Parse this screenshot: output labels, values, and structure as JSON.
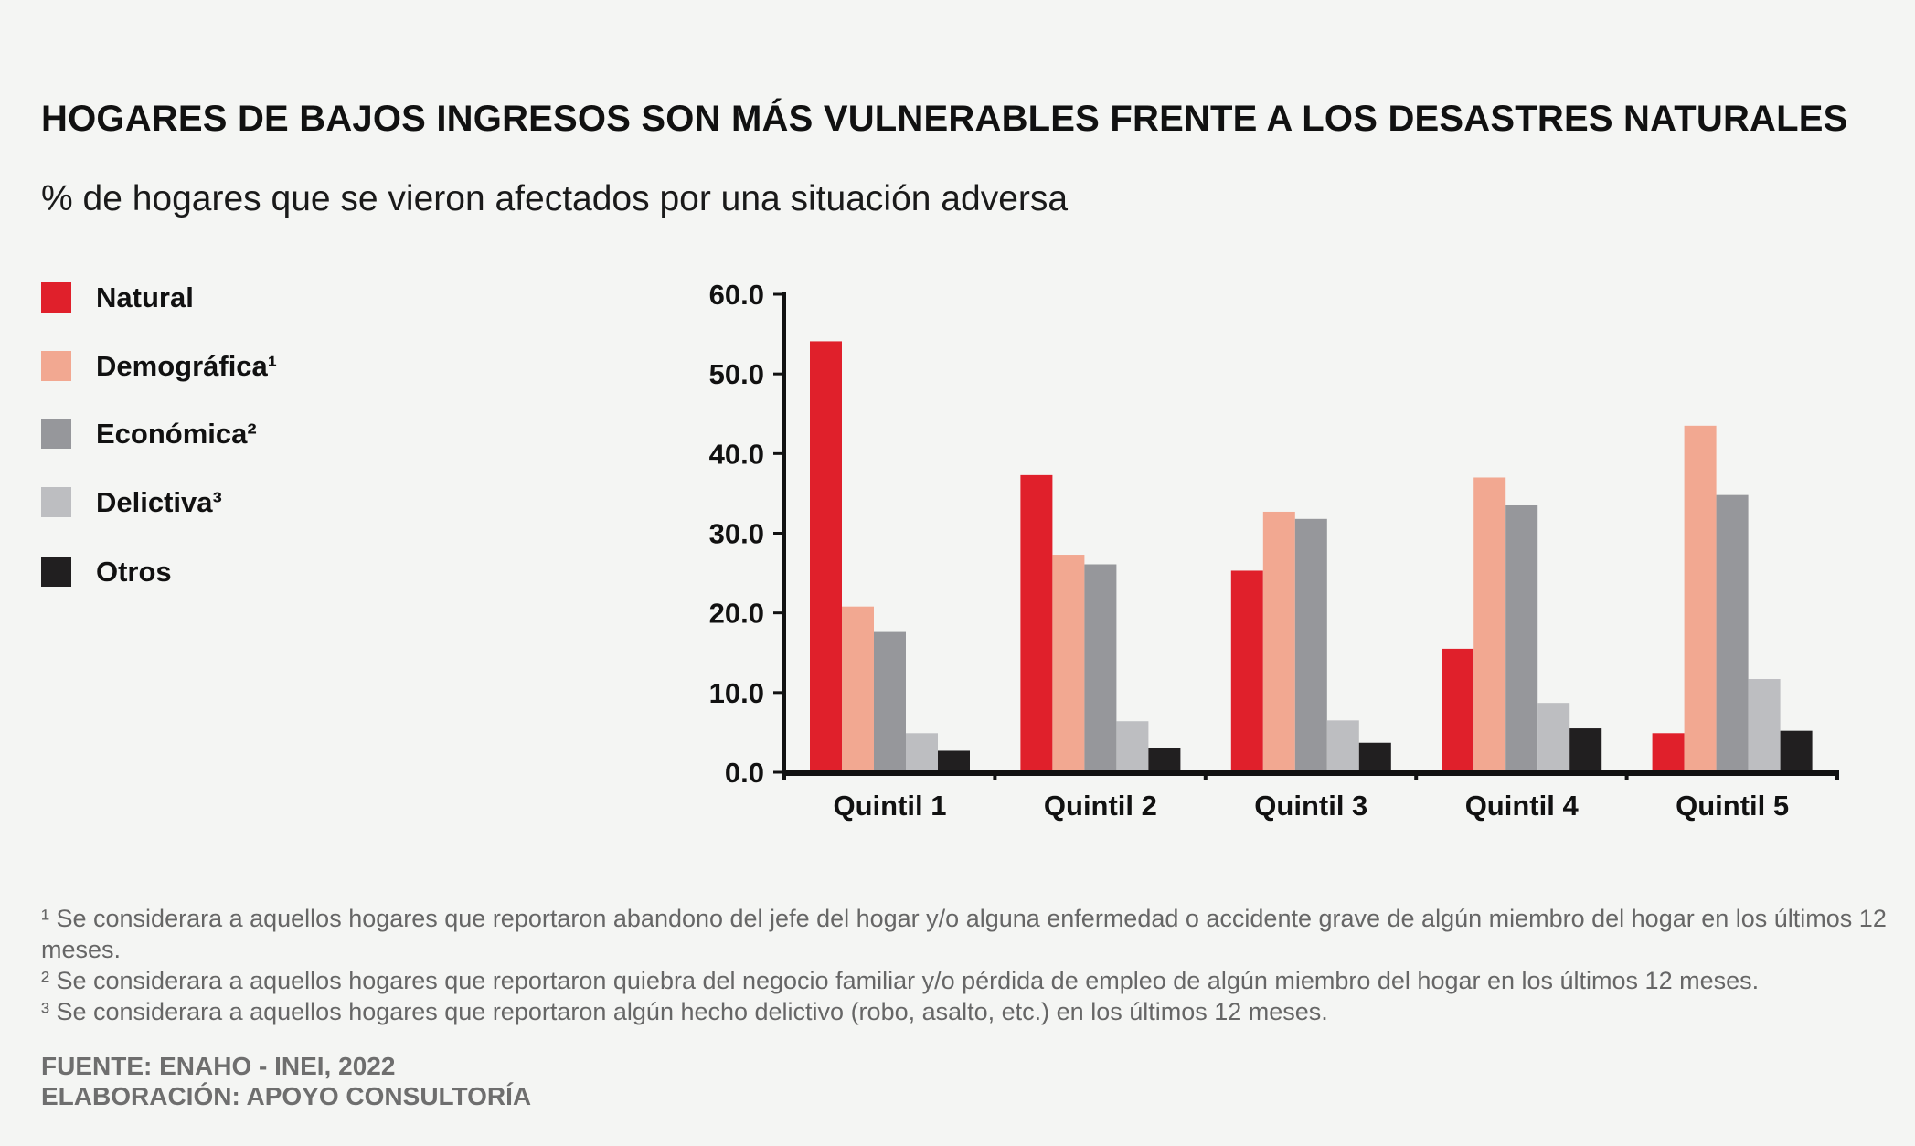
{
  "chart_data": {
    "type": "bar",
    "title": "HOGARES DE BAJOS INGRESOS SON MÁS VULNERABLES FRENTE A LOS DESASTRES NATURALES",
    "subtitle": "% de hogares que se vieron afectados por una situación adversa",
    "categories": [
      "Quintil 1",
      "Quintil 2",
      "Quintil 3",
      "Quintil 4",
      "Quintil 5"
    ],
    "series": [
      {
        "name": "Natural",
        "color": "#e0202b",
        "values": [
          54.1,
          37.3,
          25.3,
          15.5,
          4.9
        ]
      },
      {
        "name": "Demográfica¹",
        "color": "#f2a891",
        "values": [
          20.8,
          27.3,
          32.7,
          37.0,
          43.5
        ]
      },
      {
        "name": "Económica²",
        "color": "#96979b",
        "values": [
          17.6,
          26.1,
          31.8,
          33.5,
          34.8
        ]
      },
      {
        "name": "Delictiva³",
        "color": "#bdbec1",
        "values": [
          4.9,
          6.4,
          6.5,
          8.7,
          11.7
        ]
      },
      {
        "name": "Otros",
        "color": "#211f20",
        "values": [
          2.7,
          3.0,
          3.7,
          5.5,
          5.2
        ]
      }
    ],
    "y_ticks": [
      "0.0",
      "10.0",
      "20.0",
      "30.0",
      "40.0",
      "50.0",
      "60.0"
    ],
    "ylim": [
      0,
      60
    ],
    "xlabel": "",
    "ylabel": "",
    "legend_position": "left",
    "grid": false
  },
  "footnotes": [
    "¹ Se considerara a aquellos hogares que reportaron abandono del jefe del hogar y/o alguna enfermedad o accidente grave de algún miembro del hogar en los últimos 12 meses.",
    "² Se considerara a aquellos hogares que reportaron quiebra del negocio familiar y/o pérdida de empleo de algún miembro del hogar en los últimos 12 meses.",
    "³ Se considerara a aquellos hogares que reportaron algún hecho delictivo (robo, asalto, etc.) en los últimos 12 meses."
  ],
  "source": {
    "fuente": "FUENTE: ENAHO - INEI, 2022",
    "elaboracion": "ELABORACIÓN: APOYO CONSULTORÍA"
  }
}
